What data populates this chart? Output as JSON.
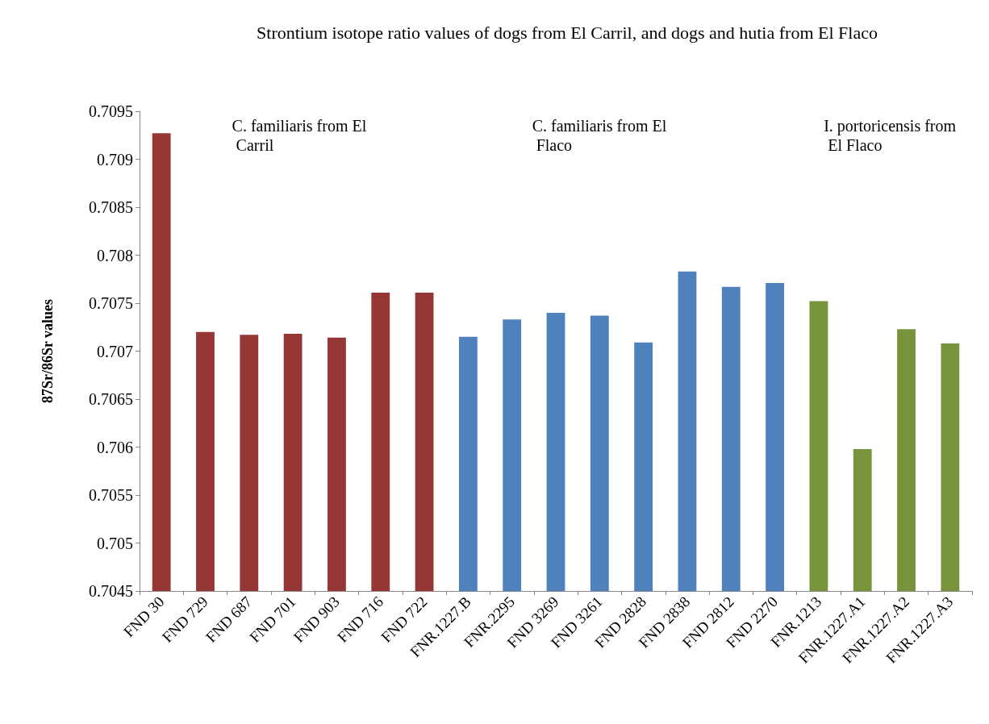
{
  "chart_data": {
    "type": "bar",
    "title": "Strontium isotope ratio values of dogs from El Carril, and dogs and hutia from El Flaco",
    "ylabel": "87Sr/86Sr values",
    "categories": [
      "FND 30",
      "FND 729",
      "FND 687",
      "FND 701",
      "FND 903",
      "FND 716",
      "FND 722",
      "FNR.1227.B",
      "FNR.2295",
      "FND 3269",
      "FND 3261",
      "FND 2828",
      "FND 2838",
      "FND 2812",
      "FND 2270",
      "FNR.1213",
      "FNR.1227.A1",
      "FNR.1227.A2",
      "FNR.1227.A3"
    ],
    "values": [
      0.70927,
      0.7072,
      0.70717,
      0.70718,
      0.70714,
      0.70761,
      0.70761,
      0.70715,
      0.70733,
      0.7074,
      0.70737,
      0.70709,
      0.70783,
      0.70767,
      0.70771,
      0.70752,
      0.70598,
      0.70723,
      0.70708
    ],
    "colors": [
      "#953735",
      "#953735",
      "#953735",
      "#953735",
      "#953735",
      "#953735",
      "#953735",
      "#4f81bd",
      "#4f81bd",
      "#4f81bd",
      "#4f81bd",
      "#4f81bd",
      "#4f81bd",
      "#4f81bd",
      "#4f81bd",
      "#77933c",
      "#77933c",
      "#77933c",
      "#77933c"
    ],
    "ylim": [
      0.7045,
      0.7095
    ],
    "yticks": [
      0.7045,
      0.705,
      0.7055,
      0.706,
      0.7065,
      0.707,
      0.7075,
      0.708,
      0.7085,
      0.709,
      0.7095
    ],
    "annotations": [
      "C. familiaris from El Carril",
      "C. familiaris from El Flaco",
      "I. portoricensis from El Flaco"
    ],
    "grid": false
  }
}
